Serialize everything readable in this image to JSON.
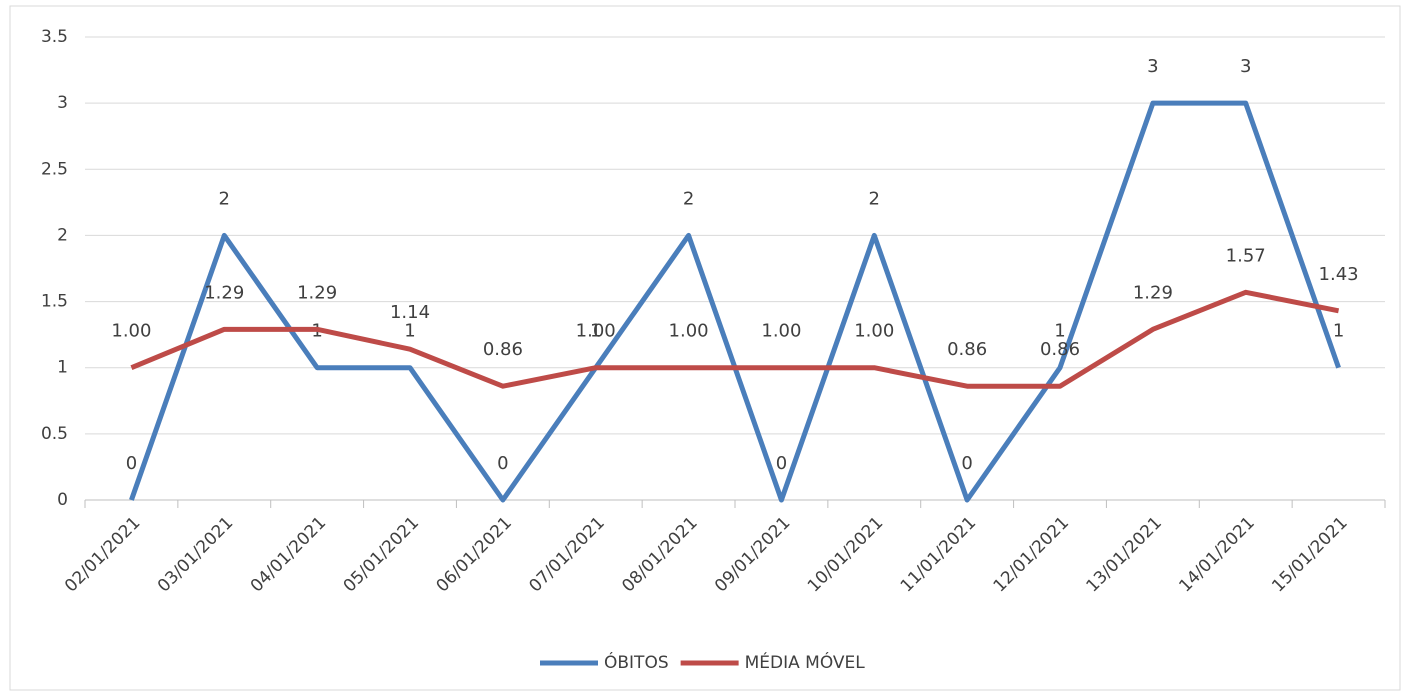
{
  "chart_data": {
    "type": "line",
    "categories": [
      "02/01/2021",
      "03/01/2021",
      "04/01/2021",
      "05/01/2021",
      "06/01/2021",
      "07/01/2021",
      "08/01/2021",
      "09/01/2021",
      "10/01/2021",
      "11/01/2021",
      "12/01/2021",
      "13/01/2021",
      "14/01/2021",
      "15/01/2021"
    ],
    "series": [
      {
        "name": "ÓBITOS",
        "color": "#4a7ebb",
        "values": [
          0,
          2,
          1,
          1,
          0,
          1,
          2,
          0,
          2,
          0,
          1,
          3,
          3,
          1
        ]
      },
      {
        "name": "MÉDIA MÓVEL",
        "color": "#be4b48",
        "values": [
          1.0,
          1.29,
          1.29,
          1.14,
          0.86,
          1.0,
          1.0,
          1.0,
          1.0,
          0.86,
          0.86,
          1.29,
          1.57,
          1.43
        ],
        "value_labels": [
          "1.00",
          "1.29",
          "1.29",
          "1.14",
          "0.86",
          "1.00",
          "1.00",
          "1.00",
          "1.00",
          "0.86",
          "0.86",
          "1.29",
          "1.57",
          "1.43"
        ]
      }
    ],
    "ylim": [
      0,
      3.5
    ],
    "yticks": [
      0,
      0.5,
      1,
      1.5,
      2,
      2.5,
      3,
      3.5
    ],
    "grid": true,
    "legend": "bottom"
  }
}
